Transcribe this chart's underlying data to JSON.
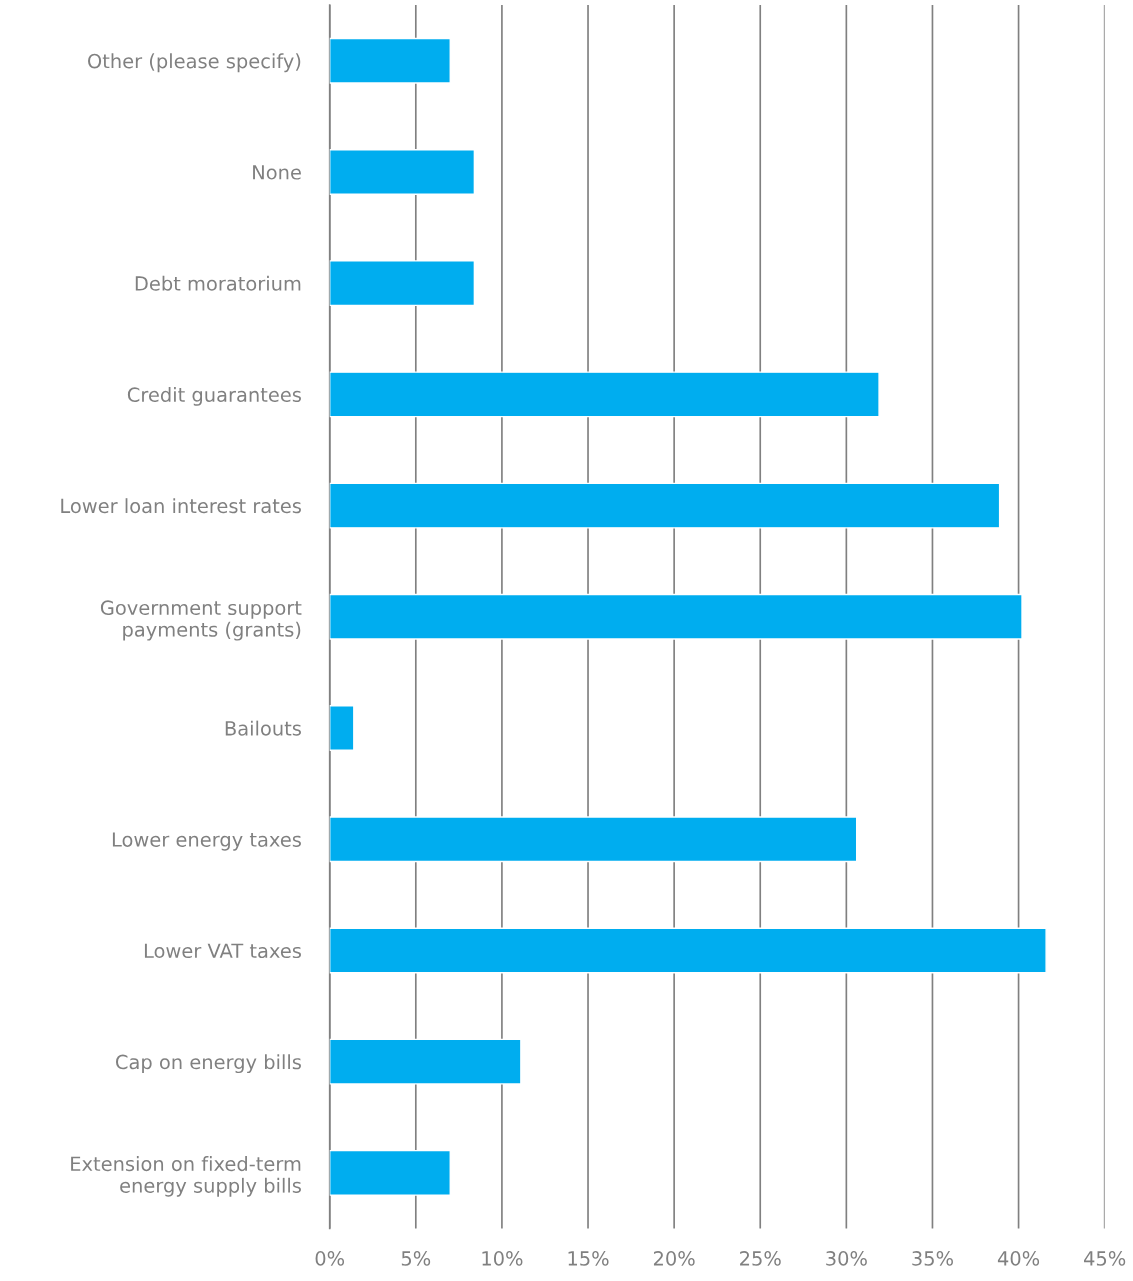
{
  "chart_data": {
    "type": "bar",
    "orientation": "horizontal",
    "categories": [
      "Other (please specify)",
      "None",
      "Debt moratorium",
      "Credit guarantees",
      "Lower loan interest rates",
      "Government support\npayments (grants)",
      "Bailouts",
      "Lower energy taxes",
      "Lower VAT taxes",
      "Cap on energy bills",
      "Extension on fixed-term\nenergy supply bills"
    ],
    "values": [
      7.0,
      8.4,
      8.4,
      31.9,
      38.9,
      40.2,
      1.4,
      30.6,
      41.6,
      11.1,
      7.0
    ],
    "color": "#00adef",
    "xlim": [
      0,
      45
    ],
    "xticks": [
      {
        "value": 0,
        "label": "0%"
      },
      {
        "value": 5,
        "label": "5%"
      },
      {
        "value": 10,
        "label": "10%"
      },
      {
        "value": 15,
        "label": "15%"
      },
      {
        "value": 20,
        "label": "20%"
      },
      {
        "value": 25,
        "label": "25%"
      },
      {
        "value": 30,
        "label": "30%"
      },
      {
        "value": 35,
        "label": "35%"
      },
      {
        "value": 40,
        "label": "40%"
      },
      {
        "value": 45,
        "label": "45%"
      }
    ],
    "grid": "x",
    "legend": false
  }
}
